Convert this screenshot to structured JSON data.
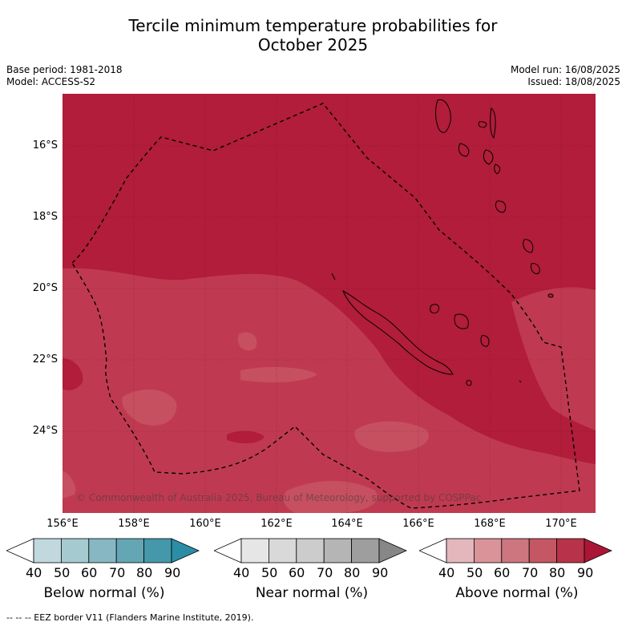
{
  "title_line1": "Tercile minimum temperature probabilities for",
  "title_line2": "October 2025",
  "base_period": "Base period: 1981-2018",
  "model": "Model: ACCESS-S2",
  "model_run": "Model run: 16/08/2025",
  "issued": "Issued: 18/08/2025",
  "lat_labels": [
    "16°S",
    "18°S",
    "20°S",
    "22°S",
    "24°S"
  ],
  "lon_labels": [
    "156°E",
    "158°E",
    "160°E",
    "162°E",
    "164°E",
    "166°E",
    "168°E",
    "170°E"
  ],
  "copyright": "© Commonwealth of Australia 2025, Bureau of Meteorology, supported by COSPPac",
  "colorbars": [
    {
      "label": "Below normal (%)",
      "ticks": [
        "40",
        "50",
        "60",
        "70",
        "80",
        "90"
      ],
      "colors": [
        "#ffffff",
        "#c0d8de",
        "#a5cbd0",
        "#86b7c2",
        "#65a6b4",
        "#4498aa",
        "#2c8ea6"
      ]
    },
    {
      "label": "Near normal (%)",
      "ticks": [
        "40",
        "50",
        "60",
        "70",
        "80",
        "90"
      ],
      "colors": [
        "#ffffff",
        "#e6e6e6",
        "#d9d9d9",
        "#cccccc",
        "#b5b5b5",
        "#9e9e9e",
        "#878787"
      ]
    },
    {
      "label": "Above normal (%)",
      "ticks": [
        "40",
        "50",
        "60",
        "70",
        "80",
        "90"
      ],
      "colors": [
        "#ffffff",
        "#e4b7bd",
        "#d99399",
        "#cd767f",
        "#c45763",
        "#b8324a",
        "#ab1636"
      ]
    }
  ],
  "legend_line": "--  --  -- EEZ border V11 (Flanders Marine Institute, 2019).",
  "map_colors": {
    "dominant": "#b11d3a",
    "medium": "#bf3a50",
    "light": "#c6505f"
  }
}
